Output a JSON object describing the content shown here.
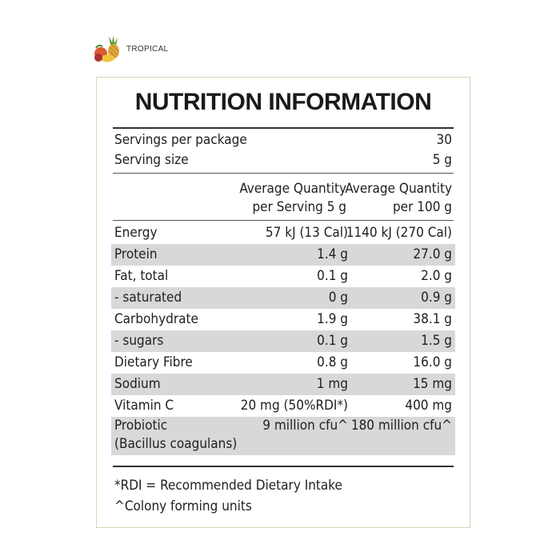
{
  "brand": {
    "fruit_icon": "tropical-fruit-icon",
    "label": "TROPICAL"
  },
  "panel": {
    "title": "NUTRITION INFORMATION",
    "servings_per_package": {
      "label": "Servings per package",
      "value": "30"
    },
    "serving_size": {
      "label": "Serving size",
      "value": "5 g"
    },
    "header": {
      "per_serving": [
        "Average Quantity",
        "per Serving 5 g"
      ],
      "per_100g": [
        "Average Quantity",
        "per 100 g"
      ]
    },
    "rows": [
      {
        "name": "Energy",
        "per_serving": "57 kJ (13 Cal)",
        "per_100g": "1140 kJ (270 Cal)"
      },
      {
        "name": "Protein",
        "per_serving": "1.4 g",
        "per_100g": "27.0 g"
      },
      {
        "name": "Fat, total",
        "per_serving": "0.1 g",
        "per_100g": "2.0 g"
      },
      {
        "name": "- saturated",
        "per_serving": "0 g",
        "per_100g": "0.9 g"
      },
      {
        "name": "Carbohydrate",
        "per_serving": "1.9 g",
        "per_100g": "38.1 g"
      },
      {
        "name": "- sugars",
        "per_serving": "0.1 g",
        "per_100g": "1.5 g"
      },
      {
        "name": "Dietary Fibre",
        "per_serving": "0.8 g",
        "per_100g": "16.0 g"
      },
      {
        "name": "Sodium",
        "per_serving": "1 mg",
        "per_100g": "15 mg"
      },
      {
        "name": "Vitamin C",
        "per_serving": "20 mg (50%RDI*)",
        "per_100g": "400 mg"
      },
      {
        "name": "Probiotic\n(Bacillus coagulans)",
        "per_serving": "9 million cfu^",
        "per_100g": "180 million cfu^"
      }
    ],
    "footnotes": [
      "*RDI = Recommended Dietary Intake",
      "^Colony forming units"
    ]
  },
  "colors": {
    "row_shade": "#d8d8d8",
    "frame_border": "#c7dbb4"
  }
}
